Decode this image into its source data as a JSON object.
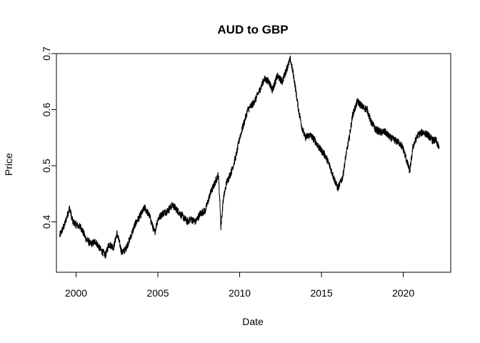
{
  "chart_data": {
    "type": "line",
    "title": "AUD to GBP",
    "xlabel": "Date",
    "ylabel": "Price",
    "xlim": [
      1998.8,
      2022.9
    ],
    "ylim": [
      0.31,
      0.7
    ],
    "x_ticks": [
      2000,
      2005,
      2010,
      2015,
      2020
    ],
    "x_tick_labels": [
      "2000",
      "2005",
      "2010",
      "2015",
      "2020"
    ],
    "y_ticks": [
      0.4,
      0.5,
      0.6,
      0.7
    ],
    "y_tick_labels": [
      "0.4",
      "0.5",
      "0.6",
      "0.7"
    ],
    "grid": false,
    "series": [
      {
        "name": "AUD to GBP",
        "color": "#000000",
        "x": [
          1999.0,
          1999.3,
          1999.6,
          1999.8,
          2000.0,
          2000.3,
          2000.6,
          2000.9,
          2001.2,
          2001.5,
          2001.8,
          2002.0,
          2002.3,
          2002.5,
          2002.8,
          2003.0,
          2003.3,
          2003.6,
          2003.9,
          2004.2,
          2004.5,
          2004.8,
          2005.0,
          2005.3,
          2005.6,
          2005.9,
          2006.2,
          2006.5,
          2006.8,
          2007.0,
          2007.3,
          2007.6,
          2007.9,
          2008.2,
          2008.5,
          2008.7,
          2008.8,
          2008.85,
          2009.0,
          2009.2,
          2009.5,
          2009.8,
          2010.0,
          2010.3,
          2010.5,
          2010.8,
          2011.0,
          2011.3,
          2011.5,
          2011.8,
          2012.0,
          2012.3,
          2012.6,
          2012.9,
          2013.1,
          2013.3,
          2013.6,
          2013.8,
          2014.0,
          2014.3,
          2014.6,
          2014.9,
          2015.2,
          2015.5,
          2015.8,
          2016.0,
          2016.3,
          2016.5,
          2016.7,
          2016.9,
          2017.2,
          2017.5,
          2017.8,
          2018.0,
          2018.3,
          2018.6,
          2018.9,
          2019.2,
          2019.5,
          2019.8,
          2020.0,
          2020.2,
          2020.4,
          2020.6,
          2020.9,
          2021.2,
          2021.5,
          2021.8,
          2022.0,
          2022.2
        ],
        "values": [
          0.375,
          0.395,
          0.425,
          0.4,
          0.395,
          0.39,
          0.37,
          0.36,
          0.365,
          0.35,
          0.34,
          0.36,
          0.355,
          0.38,
          0.345,
          0.35,
          0.37,
          0.395,
          0.41,
          0.425,
          0.41,
          0.38,
          0.405,
          0.415,
          0.42,
          0.43,
          0.42,
          0.41,
          0.4,
          0.405,
          0.4,
          0.415,
          0.42,
          0.45,
          0.47,
          0.485,
          0.43,
          0.39,
          0.44,
          0.47,
          0.49,
          0.52,
          0.55,
          0.58,
          0.6,
          0.61,
          0.62,
          0.64,
          0.655,
          0.65,
          0.635,
          0.66,
          0.65,
          0.675,
          0.69,
          0.66,
          0.6,
          0.57,
          0.55,
          0.555,
          0.545,
          0.53,
          0.52,
          0.5,
          0.475,
          0.46,
          0.48,
          0.52,
          0.55,
          0.59,
          0.615,
          0.605,
          0.6,
          0.58,
          0.565,
          0.56,
          0.56,
          0.55,
          0.545,
          0.54,
          0.53,
          0.51,
          0.49,
          0.535,
          0.555,
          0.56,
          0.555,
          0.545,
          0.545,
          0.53
        ]
      }
    ]
  }
}
